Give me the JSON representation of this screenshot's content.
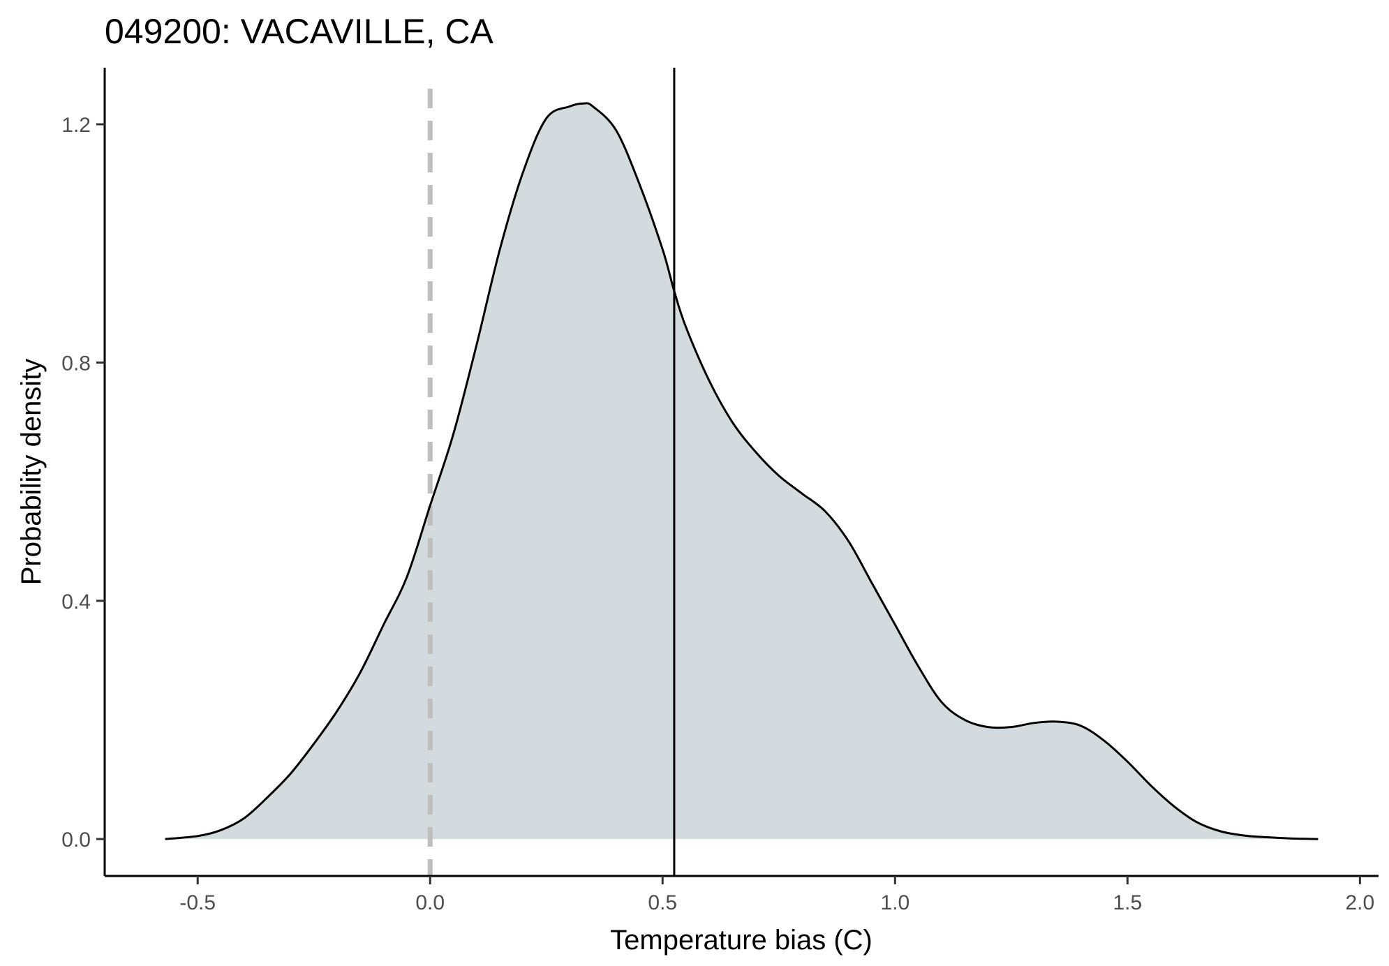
{
  "chart_data": {
    "type": "area",
    "title": "049200: VACAVILLE, CA",
    "xlabel": "Temperature bias (C)",
    "ylabel": "Probability density",
    "xlim": [
      -0.7,
      2.04
    ],
    "ylim": [
      -0.062,
      1.295
    ],
    "x_ticks": [
      -0.5,
      0.0,
      0.5,
      1.0,
      1.5,
      2.0
    ],
    "x_tick_labels": [
      "-0.5",
      "0.0",
      "0.5",
      "1.0",
      "1.5",
      "2.0"
    ],
    "y_ticks": [
      0.0,
      0.4,
      0.8,
      1.2
    ],
    "y_tick_labels": [
      "0.0",
      "0.4",
      "0.8",
      "1.2"
    ],
    "grid": false,
    "legend": "none",
    "fill_color": "#d3dbdf",
    "line_color": "#000000",
    "reference_lines": [
      {
        "x": 0.0,
        "style": "dashed",
        "color": "#bebebe"
      },
      {
        "x": 0.525,
        "style": "solid",
        "color": "#000000"
      }
    ],
    "series": [
      {
        "x": [
          -0.57,
          -0.5,
          -0.45,
          -0.4,
          -0.35,
          -0.3,
          -0.25,
          -0.2,
          -0.15,
          -0.1,
          -0.05,
          0.0,
          0.05,
          0.1,
          0.15,
          0.2,
          0.25,
          0.3,
          0.33,
          0.35,
          0.4,
          0.45,
          0.5,
          0.525,
          0.55,
          0.6,
          0.65,
          0.7,
          0.75,
          0.8,
          0.85,
          0.9,
          0.95,
          1.0,
          1.05,
          1.1,
          1.15,
          1.2,
          1.25,
          1.3,
          1.35,
          1.4,
          1.45,
          1.5,
          1.55,
          1.6,
          1.65,
          1.7,
          1.75,
          1.8,
          1.85,
          1.91
        ],
        "y": [
          0.0,
          0.005,
          0.015,
          0.035,
          0.07,
          0.11,
          0.16,
          0.215,
          0.28,
          0.36,
          0.44,
          0.56,
          0.68,
          0.83,
          0.99,
          1.12,
          1.21,
          1.23,
          1.235,
          1.23,
          1.19,
          1.1,
          0.99,
          0.92,
          0.86,
          0.77,
          0.7,
          0.65,
          0.61,
          0.58,
          0.55,
          0.5,
          0.43,
          0.36,
          0.29,
          0.23,
          0.2,
          0.188,
          0.188,
          0.195,
          0.197,
          0.19,
          0.165,
          0.13,
          0.09,
          0.055,
          0.028,
          0.013,
          0.006,
          0.003,
          0.001,
          0.0
        ]
      }
    ]
  }
}
